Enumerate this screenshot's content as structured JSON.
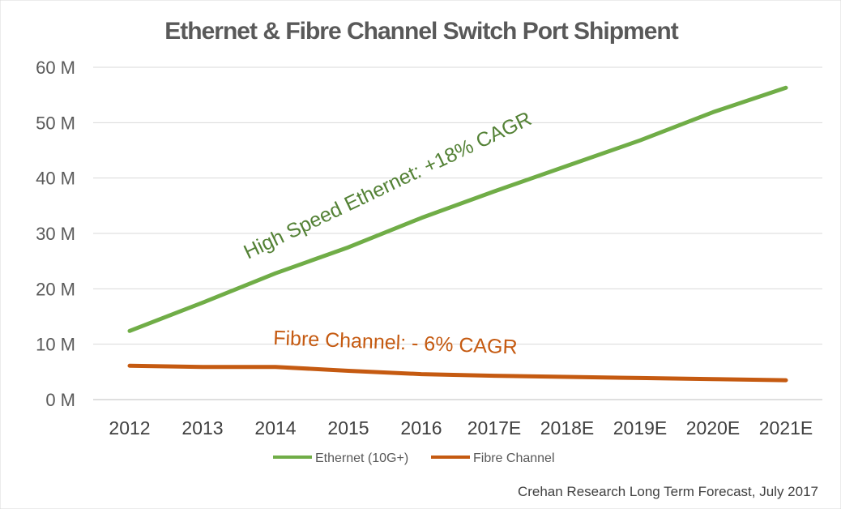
{
  "chart_data": {
    "type": "line",
    "title": "Ethernet & Fibre Channel Switch Port Shipment",
    "xlabel": "",
    "ylabel": "",
    "categories": [
      "2012",
      "2013",
      "2014",
      "2015",
      "2016",
      "2017E",
      "2018E",
      "2019E",
      "2020E",
      "2021E"
    ],
    "ylim": [
      0,
      60
    ],
    "yticks": [
      0,
      10,
      20,
      30,
      40,
      50,
      60
    ],
    "ytick_labels": [
      "0 M",
      "10 M",
      "20 M",
      "30 M",
      "40 M",
      "50 M",
      "60 M"
    ],
    "grid": true,
    "legend_position": "bottom",
    "series": [
      {
        "name": "Ethernet (10G+)",
        "color": "#70AD47",
        "values": [
          12.4,
          17.5,
          22.8,
          27.5,
          32.8,
          37.6,
          42.2,
          46.8,
          51.9,
          56.3
        ]
      },
      {
        "name": "Fibre Channel",
        "color": "#C55A11",
        "values": [
          6.1,
          5.9,
          5.9,
          5.2,
          4.6,
          4.3,
          4.1,
          3.9,
          3.7,
          3.5
        ]
      }
    ],
    "annotations": [
      {
        "text": "High Speed Ethernet: +18% CAGR",
        "color": "#538135"
      },
      {
        "text": "Fibre Channel: - 6% CAGR",
        "color": "#C55A11"
      }
    ],
    "source": "Crehan Research Long Term Forecast, July 2017"
  }
}
